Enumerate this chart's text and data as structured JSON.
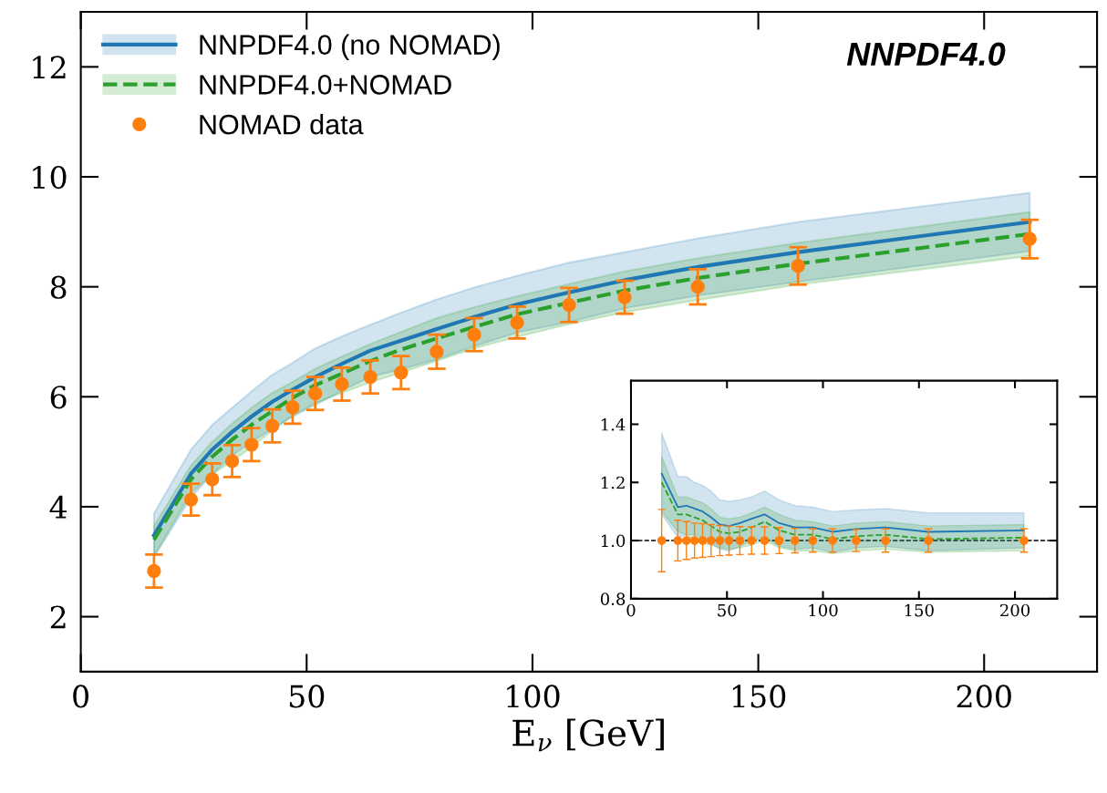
{
  "chart_data": [
    {
      "type": "line",
      "title": "NNPDF4.0",
      "xlabel": "E$_{ν}$ [GeV]",
      "xlim": [
        0,
        225
      ],
      "ylim": [
        1,
        13
      ],
      "xticks": [
        0,
        50,
        100,
        150,
        200
      ],
      "yticks": [
        2,
        4,
        6,
        8,
        10,
        12
      ],
      "grid": false,
      "legend": "top left",
      "x": [
        16.2,
        24.4,
        29.1,
        33.5,
        37.8,
        42.4,
        46.9,
        51.9,
        57.8,
        64.1,
        70.9,
        78.8,
        87.1,
        96.6,
        108.1,
        120.4,
        136.6,
        158.8,
        210.1
      ],
      "series": [
        {
          "name": "NNPDF4.0 (no NOMAD)",
          "color": "#1f77b4",
          "line_style": "solid",
          "marker": "none",
          "values": [
            3.48,
            4.6,
            5.04,
            5.36,
            5.64,
            5.91,
            6.13,
            6.36,
            6.6,
            6.84,
            7.02,
            7.23,
            7.45,
            7.68,
            7.9,
            8.12,
            8.36,
            8.63,
            9.18
          ],
          "lower": [
            3.08,
            4.17,
            4.59,
            4.93,
            5.18,
            5.42,
            5.64,
            5.85,
            6.11,
            6.36,
            6.5,
            6.68,
            6.92,
            7.17,
            7.36,
            7.61,
            7.84,
            8.09,
            8.65
          ],
          "upper": [
            3.88,
            5.04,
            5.49,
            5.8,
            6.1,
            6.4,
            6.62,
            6.88,
            7.1,
            7.31,
            7.53,
            7.77,
            7.99,
            8.2,
            8.44,
            8.63,
            8.88,
            9.18,
            9.71
          ]
        },
        {
          "name": "NNPDF4.0+NOMAD",
          "color": "#2ca02c",
          "line_style": "dashed",
          "marker": "none",
          "values": [
            3.4,
            4.5,
            4.91,
            5.22,
            5.49,
            5.74,
            5.98,
            6.21,
            6.42,
            6.65,
            6.86,
            7.06,
            7.27,
            7.5,
            7.71,
            7.93,
            8.16,
            8.42,
            8.96
          ],
          "lower": [
            3.11,
            4.25,
            4.59,
            4.83,
            5.08,
            5.39,
            5.66,
            5.88,
            6.07,
            6.26,
            6.44,
            6.65,
            6.88,
            7.09,
            7.32,
            7.54,
            7.76,
            8.04,
            8.56
          ],
          "upper": [
            3.65,
            4.75,
            5.18,
            5.51,
            5.8,
            6.07,
            6.27,
            6.51,
            6.73,
            6.96,
            7.18,
            7.43,
            7.63,
            7.83,
            8.05,
            8.28,
            8.52,
            8.8,
            9.36
          ]
        },
        {
          "name": "NOMAD data",
          "type": "scatter",
          "color": "#ff7f0e",
          "marker": "circle",
          "values": [
            2.83,
            4.13,
            4.5,
            4.83,
            5.13,
            5.47,
            5.81,
            6.06,
            6.23,
            6.36,
            6.44,
            6.82,
            7.13,
            7.35,
            7.67,
            7.81,
            8.0,
            8.38,
            8.87
          ],
          "errors": [
            0.3,
            0.29,
            0.29,
            0.29,
            0.3,
            0.3,
            0.3,
            0.3,
            0.3,
            0.3,
            0.3,
            0.31,
            0.3,
            0.29,
            0.31,
            0.3,
            0.32,
            0.34,
            0.35
          ]
        }
      ]
    },
    {
      "type": "line",
      "xlim": [
        0,
        222
      ],
      "ylim": [
        0.8,
        1.55
      ],
      "xticks": [
        0,
        50,
        100,
        150,
        200
      ],
      "yticks": [
        {
          "value": 0.8,
          "label": "0.8"
        },
        {
          "value": 1.0,
          "label": "1.0"
        },
        {
          "value": 1.2,
          "label": "1.2"
        },
        {
          "value": 1.4,
          "label": "1.4"
        }
      ],
      "grid": false,
      "x": [
        16.0,
        24.4,
        28.9,
        33.1,
        37.3,
        41.7,
        46.3,
        51.1,
        56.7,
        62.8,
        69.6,
        77.2,
        85.4,
        94.7,
        105.0,
        117.3,
        132.6,
        154.9,
        204.7
      ],
      "ref_lines": [
        {
          "axis": "y",
          "value": 1.0,
          "color": "#000000",
          "line_style": "dashed"
        }
      ],
      "series": [
        {
          "color": "#1f77b4",
          "line_style": "solid",
          "marker": "none",
          "values": [
            1.23,
            1.115,
            1.12,
            1.11,
            1.1,
            1.08,
            1.055,
            1.05,
            1.06,
            1.075,
            1.09,
            1.06,
            1.045,
            1.045,
            1.03,
            1.04,
            1.045,
            1.03,
            1.035
          ],
          "lower": [
            1.09,
            1.01,
            1.02,
            1.02,
            1.01,
            0.99,
            0.97,
            0.965,
            0.98,
            1.0,
            1.01,
            0.98,
            0.97,
            0.975,
            0.96,
            0.975,
            0.98,
            0.965,
            0.975
          ],
          "upper": [
            1.37,
            1.22,
            1.22,
            1.2,
            1.19,
            1.17,
            1.14,
            1.135,
            1.14,
            1.15,
            1.17,
            1.14,
            1.12,
            1.115,
            1.1,
            1.105,
            1.11,
            1.095,
            1.095
          ]
        },
        {
          "color": "#2ca02c",
          "line_style": "dashed",
          "marker": "none",
          "values": [
            1.2,
            1.09,
            1.09,
            1.08,
            1.07,
            1.05,
            1.03,
            1.025,
            1.03,
            1.045,
            1.065,
            1.035,
            1.02,
            1.02,
            1.005,
            1.015,
            1.02,
            1.005,
            1.01
          ],
          "lower": [
            1.1,
            1.03,
            1.02,
            1.0,
            0.99,
            0.985,
            0.975,
            0.97,
            0.975,
            0.985,
            1.0,
            0.975,
            0.965,
            0.965,
            0.955,
            0.965,
            0.97,
            0.96,
            0.965
          ],
          "upper": [
            1.29,
            1.15,
            1.15,
            1.14,
            1.13,
            1.11,
            1.08,
            1.075,
            1.08,
            1.095,
            1.115,
            1.09,
            1.07,
            1.065,
            1.05,
            1.06,
            1.065,
            1.05,
            1.055
          ]
        },
        {
          "type": "scatter",
          "color": "#ff7f0e",
          "marker": "circle",
          "values": [
            1.0,
            1.0,
            1.0,
            1.0,
            1.0,
            1.0,
            1.0,
            1.0,
            1.0,
            1.0,
            1.0,
            1.0,
            1.0,
            1.0,
            1.0,
            1.0,
            1.0,
            1.0,
            1.0
          ],
          "errors": [
            0.107,
            0.07,
            0.065,
            0.06,
            0.058,
            0.055,
            0.052,
            0.05,
            0.048,
            0.047,
            0.047,
            0.045,
            0.042,
            0.04,
            0.04,
            0.038,
            0.04,
            0.04,
            0.04
          ]
        }
      ]
    }
  ]
}
